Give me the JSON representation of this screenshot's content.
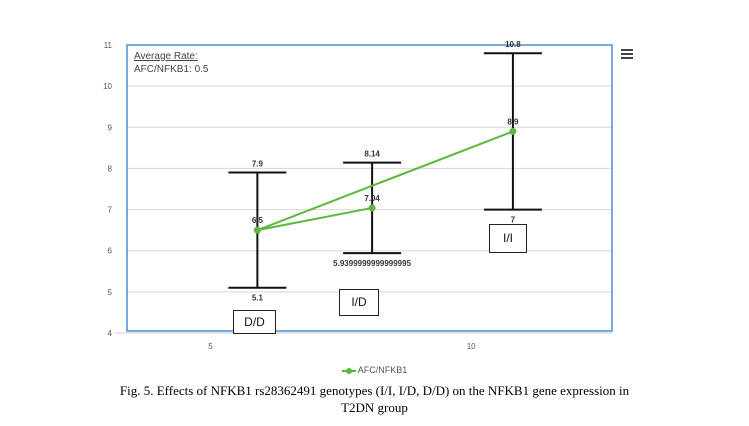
{
  "chart_data": {
    "type": "line",
    "title": "",
    "xlabel": "",
    "ylabel": "",
    "xlim": [
      3.4,
      12.7
    ],
    "ylim": [
      4,
      11
    ],
    "x_ticks": [
      "5",
      "10"
    ],
    "y_ticks": [
      "4",
      "5",
      "6",
      "7",
      "8",
      "9",
      "10",
      "11"
    ],
    "grid": "horizontal",
    "legend": "bottom-center",
    "series": [
      {
        "name": "AFC/NFKB1",
        "color": "#5cb83c",
        "points": [
          {
            "genotype": "I/D",
            "x": 8.1,
            "y": 7.04,
            "low": 5.9399999999999995,
            "high": 8.14,
            "y_label": "7.04",
            "low_label": "5.9399999999999995",
            "high_label": "8.14"
          },
          {
            "genotype": "D/D",
            "x": 5.9,
            "y": 6.5,
            "low": 5.1,
            "high": 7.9,
            "y_label": "6.5",
            "low_label": "5.1",
            "high_label": "7.9"
          },
          {
            "genotype": "I/I",
            "x": 10.8,
            "y": 8.9,
            "low": 7,
            "high": 10.8,
            "y_label": "8.9",
            "low_label": "7",
            "high_label": "10.8"
          }
        ]
      }
    ],
    "border_color": "#4a8fd4",
    "errorbar_color": "#111111"
  },
  "average_rate": {
    "title": "Average Rate:",
    "value": "AFC/NFKB1: 0.5"
  },
  "legend_label": "AFC/NFKB1",
  "genotype_boxes": {
    "dd": "D/D",
    "id": "I/D",
    "ii": "I/I"
  },
  "caption": {
    "line1": "Fig. 5. Effects of NFKB1 rs28362491 genotypes (I/I, I/D, D/D) on the NFKB1 gene expression in",
    "line2": "T2DN group"
  }
}
